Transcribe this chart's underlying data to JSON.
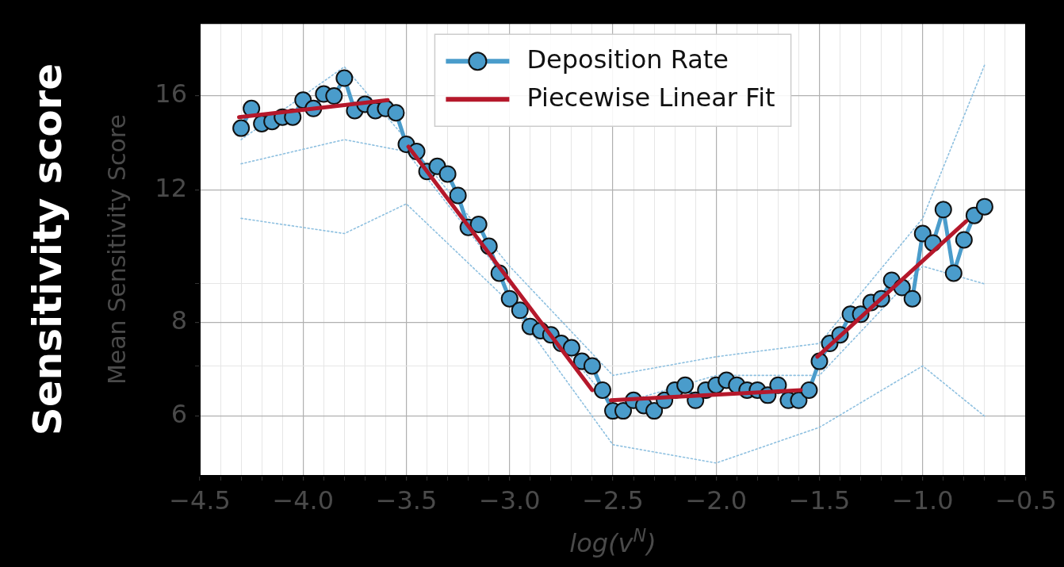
{
  "chart_data": {
    "type": "line",
    "ylabel": "Mean Sensitivity Score",
    "xlabel": "log(v$^{N}$)",
    "annotations": [
      "Sensitivity score"
    ],
    "log": "y",
    "grid": true,
    "legend": "top",
    "xlim": [
      -4.5,
      -0.5
    ],
    "xticks": [
      {
        "value": -4.5,
        "label": "−4.5"
      },
      {
        "value": -4.4,
        "label": null
      },
      {
        "value": -4.3,
        "label": null
      },
      {
        "value": -4.2,
        "label": null
      },
      {
        "value": -4.1,
        "label": null
      },
      {
        "value": -4.0,
        "label": "−4.0"
      },
      {
        "value": -3.9,
        "label": null
      },
      {
        "value": -3.8,
        "label": null
      },
      {
        "value": -3.7,
        "label": null
      },
      {
        "value": -3.6,
        "label": null
      },
      {
        "value": -3.5,
        "label": "−3.5"
      },
      {
        "value": -3.4,
        "label": null
      },
      {
        "value": -3.3,
        "label": null
      },
      {
        "value": -3.2,
        "label": null
      },
      {
        "value": -3.1,
        "label": null
      },
      {
        "value": -3.0,
        "label": "−3.0"
      },
      {
        "value": -2.9,
        "label": null
      },
      {
        "value": -2.8,
        "label": null
      },
      {
        "value": -2.7,
        "label": null
      },
      {
        "value": -2.6,
        "label": null
      },
      {
        "value": -2.5,
        "label": "−2.5"
      },
      {
        "value": -2.4,
        "label": null
      },
      {
        "value": -2.3,
        "label": null
      },
      {
        "value": -2.2,
        "label": null
      },
      {
        "value": -2.1,
        "label": null
      },
      {
        "value": -2.0,
        "label": "−2.0"
      },
      {
        "value": -1.9,
        "label": null
      },
      {
        "value": -1.8,
        "label": null
      },
      {
        "value": -1.7,
        "label": null
      },
      {
        "value": -1.6,
        "label": null
      },
      {
        "value": -1.5,
        "label": "−1.5"
      },
      {
        "value": -1.4,
        "label": null
      },
      {
        "value": -1.3,
        "label": null
      },
      {
        "value": -1.2,
        "label": null
      },
      {
        "value": -1.1,
        "label": null
      },
      {
        "value": -1.0,
        "label": "−1.0"
      },
      {
        "value": -0.9,
        "label": null
      },
      {
        "value": -0.8,
        "label": null
      },
      {
        "value": -0.7,
        "label": null
      },
      {
        "value": -0.6,
        "label": null
      },
      {
        "value": -0.5,
        "label": "−0.5"
      }
    ],
    "ylim": [
      5,
      20
    ],
    "yticks": [
      6,
      {
        "value": 7,
        "label": null
      },
      8,
      {
        "value": 9,
        "label": null
      },
      12,
      16
    ],
    "series": [
      {
        "color": "#8ec0e0",
        "line_style": "dotted",
        "marker": "none",
        "x": [
          -4.3,
          -3.8,
          -3.5,
          -3.0,
          -2.5,
          -2.0,
          -1.5,
          -1.0,
          -0.7
        ],
        "values": [
          14.0,
          17.5,
          14.0,
          9.5,
          6.8,
          7.2,
          7.5,
          11.0,
          17.6
        ]
      },
      {
        "color": "#8ec0e0",
        "line_style": "dotted",
        "marker": "none",
        "x": [
          -4.3,
          -3.8,
          -3.5,
          -3.0,
          -2.5,
          -2.0,
          -1.5,
          -1.0,
          -0.7
        ],
        "values": [
          13.0,
          14.0,
          13.5,
          9.0,
          6.2,
          6.8,
          6.8,
          9.5,
          9.0
        ]
      },
      {
        "color": "#8ec0e0",
        "line_style": "dotted",
        "marker": "none",
        "x": [
          -4.3,
          -3.8,
          -3.5,
          -3.0,
          -2.5,
          -2.0,
          -1.5,
          -1.0,
          -0.7
        ],
        "values": [
          11.0,
          10.5,
          11.5,
          8.5,
          5.5,
          5.2,
          5.8,
          7.0,
          6.0
        ]
      },
      {
        "name": "Deposition Rate",
        "color": "#4a9ccb",
        "marker": "circle",
        "line_style": "solid",
        "x": [
          -4.3,
          -4.25,
          -4.2,
          -4.15,
          -4.1,
          -4.05,
          -4.0,
          -3.95,
          -3.9,
          -3.85,
          -3.8,
          -3.75,
          -3.7,
          -3.65,
          -3.6,
          -3.55,
          -3.5,
          -3.45,
          -3.4,
          -3.35,
          -3.3,
          -3.25,
          -3.2,
          -3.15,
          -3.1,
          -3.05,
          -3.0,
          -2.95,
          -2.9,
          -2.85,
          -2.8,
          -2.75,
          -2.7,
          -2.65,
          -2.6,
          -2.55,
          -2.5,
          -2.45,
          -2.4,
          -2.35,
          -2.3,
          -2.25,
          -2.2,
          -2.15,
          -2.1,
          -2.05,
          -2.0,
          -1.95,
          -1.9,
          -1.85,
          -1.8,
          -1.75,
          -1.7,
          -1.65,
          -1.6,
          -1.55,
          -1.5,
          -1.45,
          -1.4,
          -1.35,
          -1.3,
          -1.25,
          -1.2,
          -1.15,
          -1.1,
          -1.05,
          -1.0,
          -0.95,
          -0.9,
          -0.85,
          -0.8,
          -0.75,
          -0.7
        ],
        "values": [
          14.5,
          15.4,
          14.7,
          14.8,
          15.0,
          15.0,
          15.8,
          15.4,
          16.1,
          16.0,
          16.9,
          15.3,
          15.6,
          15.3,
          15.4,
          15.2,
          13.8,
          13.5,
          12.7,
          12.9,
          12.6,
          11.8,
          10.7,
          10.8,
          10.1,
          9.3,
          8.6,
          8.3,
          7.9,
          7.8,
          7.7,
          7.5,
          7.4,
          7.1,
          7.0,
          6.5,
          6.1,
          6.1,
          6.3,
          6.2,
          6.1,
          6.3,
          6.5,
          6.6,
          6.3,
          6.5,
          6.6,
          6.7,
          6.6,
          6.5,
          6.5,
          6.4,
          6.6,
          6.3,
          6.3,
          6.5,
          7.1,
          7.5,
          7.7,
          8.2,
          8.2,
          8.5,
          8.6,
          9.1,
          8.9,
          8.6,
          10.5,
          10.2,
          11.3,
          9.3,
          10.3,
          11.1,
          11.4
        ]
      },
      {
        "name": "Piecewise Linear Fit",
        "color": "#b5182b",
        "marker": "none",
        "line_style": "solid",
        "x": [
          -4.31,
          -3.59,
          -3.54,
          -3.49,
          -2.6,
          -2.55,
          -2.51,
          -1.59,
          -1.55,
          -1.51,
          -0.79
        ],
        "values": [
          15.0,
          15.8,
          null,
          13.7,
          6.5,
          null,
          6.3,
          6.5,
          null,
          7.2,
          10.9
        ]
      }
    ]
  }
}
